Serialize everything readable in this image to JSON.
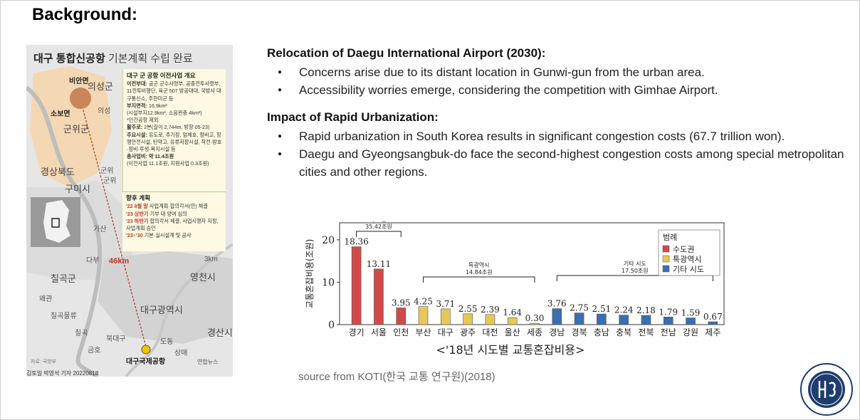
{
  "slide": {
    "title": "Background:",
    "source": "source from KOTI(한국 교통 연구원)(2018)"
  },
  "map": {
    "title_bold": "대구 통합신공항",
    "title_rest": " 기본계획 수립 완료",
    "labels": {
      "bianmyeon": "비안면",
      "uiseonggun": "의성군",
      "sobomyeon": "소보면",
      "uiseong": "의성",
      "gunwigun": "군위군",
      "gyeongbuk": "경상북도",
      "gunwi1": "군위",
      "gunwi2": "군위",
      "gumisi": "구미시",
      "gasan": "가산",
      "dabu": "다부",
      "distance": "46km",
      "scale": "3km",
      "chilgokgun": "칠곡군",
      "yeongcheonsi": "영천시",
      "waegwan": "왜관",
      "daegu": "대구광역시",
      "chilgokmulryu": "칠곡물류",
      "chilgok": "칠곡",
      "gyeongsansi": "경산시",
      "bukdaegu": "북대구",
      "geumho": "금호",
      "dodong": "도동",
      "sangmae": "상매",
      "airport": "대구국제공항"
    },
    "info": {
      "heading": "대구 군 공항 이전사업 개요",
      "move_units_label": "이전부대:",
      "move_units": " 공군 군수사령부, 공중전투사령부, 11전투비행단, 육군 507 방공대대, 국방사 대구통신소, 주한미군 등",
      "area_label": "부지면적:",
      "area": " 16.9km²",
      "area_note": "(시설부지12.9km², 소음완충 4km²)",
      "civil": "*민간공항 제외",
      "runway_label": "활주로:",
      "runway": " 2본(길이 2,744m, 방향 05-23)",
      "facilities_label": "주요시설:",
      "facilities": " 유도로, 주기장, 엄체호, 정비고, 항행안전시설, 탄약고, 유류저장시설, 작전·방호·정비·후생·복지시설 등",
      "cost_label": "총사업비: 약 11.4조원",
      "cost_note": "(이전사업 11.1조원, 지원사업 0.3조원)"
    },
    "plan": {
      "heading": "향후 계획",
      "items": [
        {
          "year": "'22 8월 말",
          "text": " 사업계획·합의각서(안) 체결"
        },
        {
          "year": "'23 상반기",
          "text": " 기부 대 양여 심의"
        },
        {
          "year": "'23 하반기",
          "text": " 합의각서 체결, 사업시행자 지정, 사업계획 승인"
        },
        {
          "year": "'23~'30",
          "text": " 기본·실시설계 및 공사"
        }
      ]
    },
    "src_note": "자료: 국방부",
    "yonhap": "연합뉴스",
    "credit": "김토일 박영석 기자 20220818"
  },
  "sections": [
    {
      "title": "Relocation of Daegu International Airport (2030):",
      "bullets": [
        "Concerns arise due to its distant location in Gunwi-gun from the urban area.",
        "Accessibility worries emerge, considering the competition with Gimhae Airport."
      ]
    },
    {
      "title": "Impact of Rapid Urbanization:",
      "bullets": [
        "Rapid urbanization in South Korea results in significant congestion costs (67.7 trillion won).",
        "Daegu and Gyeongsangbuk-do face the second-highest congestion costs among special metropolitan cities and other regions."
      ]
    }
  ],
  "bullet_glyph": "●",
  "chart_data": {
    "type": "bar",
    "title": "<'18년 시도별 교통혼잡비용>",
    "ylabel": "교통혼잡비용(조원)",
    "ylim": [
      0,
      24
    ],
    "yticks": [
      0,
      10,
      20
    ],
    "categories": [
      "경기",
      "서울",
      "인천",
      "부산",
      "대구",
      "광주",
      "대전",
      "울산",
      "세종",
      "경남",
      "경북",
      "충남",
      "충북",
      "전북",
      "전남",
      "강원",
      "제주"
    ],
    "values": [
      18.36,
      13.11,
      3.95,
      4.25,
      3.71,
      2.55,
      2.39,
      1.64,
      0.3,
      3.76,
      2.75,
      2.51,
      2.24,
      2.18,
      1.79,
      1.59,
      0.67
    ],
    "value_labels": [
      "18.36",
      "13.11",
      "3.95",
      "4.25",
      "3.71",
      "2.55",
      "2.39",
      "1.64",
      "0.30",
      "3.76",
      "2.75",
      "2.51",
      "2.24",
      "2.18",
      "1.79",
      "1.59",
      "0.67"
    ],
    "groups": [
      0,
      0,
      0,
      1,
      1,
      1,
      1,
      1,
      1,
      2,
      2,
      2,
      2,
      2,
      2,
      2,
      2
    ],
    "group_colors": [
      "#cf4b4b",
      "#e8c758",
      "#3a6fb0"
    ],
    "legend_title": "범례",
    "legend": [
      "수도권",
      "특광역시",
      "기타 시도"
    ],
    "legend_position": "top-right",
    "brackets": [
      {
        "label1": "수도권",
        "label2": "35.42조원",
        "from": 0,
        "to": 2
      },
      {
        "label1": "특광역시",
        "label2": "14.84조원",
        "from": 3,
        "to": 8
      },
      {
        "label1": "기타 시도",
        "label2": "17.50조원",
        "from": 9,
        "to": 16
      }
    ]
  }
}
